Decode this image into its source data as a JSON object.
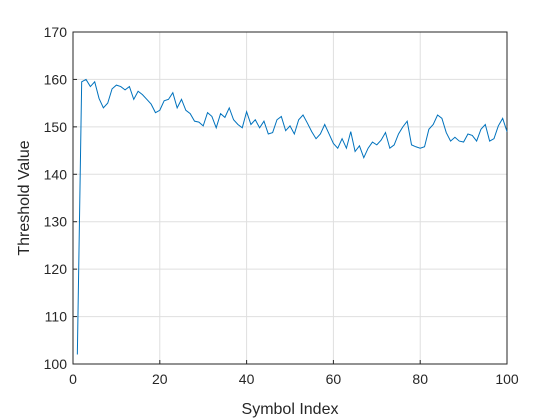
{
  "chart_data": {
    "type": "line",
    "xlabel": "Symbol Index",
    "ylabel": "Threshold Value",
    "x": [
      1,
      2,
      3,
      4,
      5,
      6,
      7,
      8,
      9,
      10,
      11,
      12,
      13,
      14,
      15,
      16,
      17,
      18,
      19,
      20,
      21,
      22,
      23,
      24,
      25,
      26,
      27,
      28,
      29,
      30,
      31,
      32,
      33,
      34,
      35,
      36,
      37,
      38,
      39,
      40,
      41,
      42,
      43,
      44,
      45,
      46,
      47,
      48,
      49,
      50,
      51,
      52,
      53,
      54,
      55,
      56,
      57,
      58,
      59,
      60,
      61,
      62,
      63,
      64,
      65,
      66,
      67,
      68,
      69,
      70,
      71,
      72,
      73,
      74,
      75,
      76,
      77,
      78,
      79,
      80,
      81,
      82,
      83,
      84,
      85,
      86,
      87,
      88,
      89,
      90,
      91,
      92,
      93,
      94,
      95,
      96,
      97,
      98,
      99,
      100
    ],
    "series": [
      {
        "color": "#0072bd",
        "values": [
          102,
          159.5,
          160,
          158.5,
          159.5,
          156,
          154,
          155,
          158,
          158.8,
          158.5,
          157.8,
          158.5,
          155.8,
          157.5,
          156.8,
          155.8,
          154.8,
          153,
          153.5,
          155.5,
          155.8,
          157.2,
          154,
          155.8,
          153.5,
          152.8,
          151.2,
          151,
          150.2,
          153,
          152.2,
          149.8,
          152.8,
          152,
          154,
          151.5,
          150.5,
          149.8,
          153.2,
          150.5,
          151.5,
          149.8,
          151.2,
          148.5,
          148.8,
          151.5,
          152.2,
          149.2,
          150.2,
          148.5,
          151.5,
          152.5,
          150.8,
          149,
          147.5,
          148.5,
          150.5,
          148.5,
          146.5,
          145.5,
          147.5,
          145.5,
          149,
          144.8,
          146,
          143.5,
          145.5,
          146.8,
          146.2,
          147.2,
          148.8,
          145.5,
          146.2,
          148.5,
          150,
          151.2,
          146.2,
          145.8,
          145.5,
          145.8,
          149.5,
          150.5,
          152.5,
          151.8,
          148.8,
          147,
          147.8,
          147,
          146.8,
          148.5,
          148.2,
          147,
          149.5,
          150.5,
          147,
          147.5,
          150.2,
          151.8,
          149
        ]
      }
    ],
    "xlim": [
      0,
      100
    ],
    "xticks": [
      0,
      20,
      40,
      60,
      80,
      100
    ],
    "ylim": [
      100,
      170
    ],
    "yticks": [
      100,
      110,
      120,
      130,
      140,
      150,
      160,
      170
    ],
    "grid": true
  }
}
